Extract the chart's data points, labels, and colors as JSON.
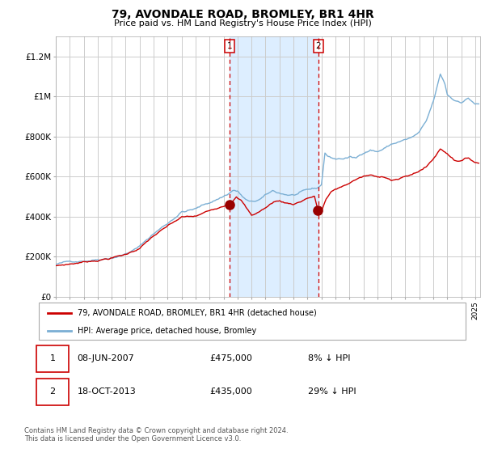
{
  "title": "79, AVONDALE ROAD, BROMLEY, BR1 4HR",
  "subtitle": "Price paid vs. HM Land Registry's House Price Index (HPI)",
  "legend_label_red": "79, AVONDALE ROAD, BROMLEY, BR1 4HR (detached house)",
  "legend_label_blue": "HPI: Average price, detached house, Bromley",
  "t1_date": "08-JUN-2007",
  "t1_price": "£475,000",
  "t1_pct": "8% ↓ HPI",
  "t1_year": 2007.44,
  "t2_date": "18-OCT-2013",
  "t2_price": "£435,000",
  "t2_pct": "29% ↓ HPI",
  "t2_year": 2013.79,
  "footnote_line1": "Contains HM Land Registry data © Crown copyright and database right 2024.",
  "footnote_line2": "This data is licensed under the Open Government Licence v3.0.",
  "ylim": [
    0,
    1300000
  ],
  "yticks": [
    0,
    200000,
    400000,
    600000,
    800000,
    1000000,
    1200000
  ],
  "ytick_labels": [
    "£0",
    "£200K",
    "£400K",
    "£600K",
    "£800K",
    "£1M",
    "£1.2M"
  ],
  "red_color": "#cc0000",
  "blue_color": "#7bafd4",
  "shade_color": "#ddeeff",
  "bg_color": "#ffffff",
  "grid_color": "#cccccc",
  "year_start": 1995,
  "year_end": 2025
}
